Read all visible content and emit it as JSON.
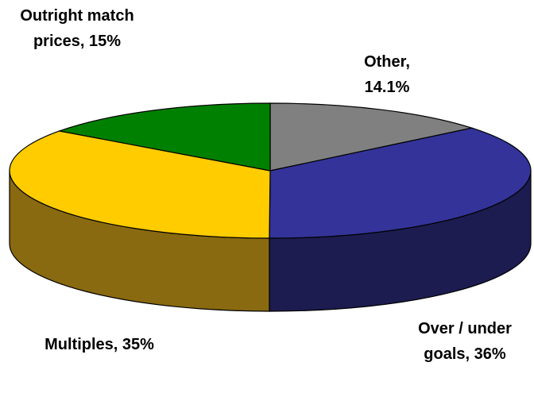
{
  "chart_data": {
    "type": "pie3d",
    "values": [
      14.1,
      36,
      35,
      15
    ],
    "value_labels": [
      "Other, 14.1%",
      "Over / under goals, 36%",
      "Multiples, 35%",
      "Outright match prices, 15%"
    ],
    "colors": [
      "#808080",
      "#333399",
      "#ffcc00",
      "#008000"
    ],
    "side_colors": [
      "#404040",
      "#1c1c50",
      "#8a6a10",
      "#004000"
    ]
  }
}
